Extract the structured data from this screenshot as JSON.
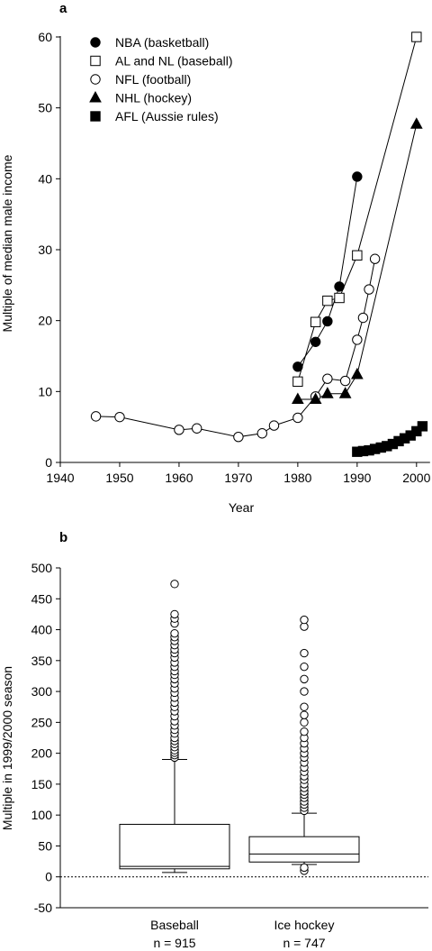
{
  "chart_data": [
    {
      "panel_label": "a",
      "type": "line",
      "xlabel": "Year",
      "ylabel": "Multiple of median male income",
      "xlim": [
        1940,
        2002
      ],
      "ylim": [
        0,
        60
      ],
      "xticks": [
        1940,
        1950,
        1960,
        1970,
        1980,
        1990,
        2000
      ],
      "yticks": [
        0,
        10,
        20,
        30,
        40,
        50,
        60
      ],
      "legend_position": "top-left",
      "series": [
        {
          "name": "NBA (basketball)",
          "marker": "filled-circle",
          "x": [
            1980,
            1983,
            1985,
            1987,
            1990
          ],
          "y": [
            13.5,
            17,
            19.9,
            24.8,
            40.3
          ]
        },
        {
          "name": "AL and NL (baseball)",
          "marker": "open-square",
          "x": [
            1980,
            1983,
            1985,
            1987,
            1990,
            2000
          ],
          "y": [
            11.4,
            19.8,
            22.8,
            23.2,
            29.2,
            60
          ]
        },
        {
          "name": "NFL (football)",
          "marker": "open-circle",
          "x": [
            1946,
            1950,
            1960,
            1963,
            1970,
            1974,
            1976,
            1980,
            1983,
            1985,
            1988,
            1990,
            1991,
            1992,
            1993
          ],
          "y": [
            6.5,
            6.4,
            4.6,
            4.8,
            3.6,
            4.1,
            5.2,
            6.3,
            9.3,
            11.8,
            11.5,
            17.3,
            20.4,
            24.4,
            28.7
          ]
        },
        {
          "name": "NHL (hockey)",
          "marker": "filled-triangle",
          "x": [
            1980,
            1983,
            1985,
            1988,
            1990,
            2000
          ],
          "y": [
            8.9,
            8.9,
            9.7,
            9.7,
            12.4,
            47.7
          ]
        },
        {
          "name": "AFL (Aussie rules)",
          "marker": "filled-square",
          "x": [
            1990,
            1991,
            1992,
            1993,
            1994,
            1995,
            1996,
            1997,
            1998,
            1999,
            2000,
            2001
          ],
          "y": [
            1.5,
            1.6,
            1.7,
            1.9,
            2.1,
            2.3,
            2.6,
            3.0,
            3.4,
            3.8,
            4.4,
            5.1
          ]
        }
      ]
    },
    {
      "panel_label": "b",
      "type": "box",
      "ylabel": "Multiple in 1999/2000 season",
      "ylim": [
        -50,
        500
      ],
      "yticks": [
        -50,
        0,
        50,
        100,
        150,
        200,
        250,
        300,
        350,
        400,
        450,
        500
      ],
      "reference_line": 0,
      "categories": [
        {
          "name": "Baseball",
          "n_label": "n = 915",
          "whisker_low": 7,
          "q1": 13,
          "median": 17,
          "q3": 85,
          "whisker_high": 190,
          "outliers": [
            193,
            197,
            201,
            205,
            210,
            215,
            220,
            225,
            232,
            238,
            245,
            252,
            260,
            268,
            275,
            282,
            290,
            298,
            305,
            313,
            320,
            327,
            333,
            340,
            347,
            355,
            362,
            368,
            375,
            382,
            388,
            394,
            410,
            418,
            425,
            474
          ]
        },
        {
          "name": "Ice hockey",
          "n_label": "n = 747",
          "whisker_low": 20,
          "q1": 24,
          "median": 37,
          "q3": 65,
          "whisker_high": 103,
          "outliers": [
            10,
            15,
            107,
            112,
            117,
            122,
            128,
            133,
            138,
            144,
            150,
            157,
            163,
            170,
            177,
            185,
            193,
            200,
            208,
            216,
            225,
            235,
            250,
            262,
            275,
            300,
            320,
            340,
            362,
            405,
            416
          ]
        }
      ]
    }
  ]
}
